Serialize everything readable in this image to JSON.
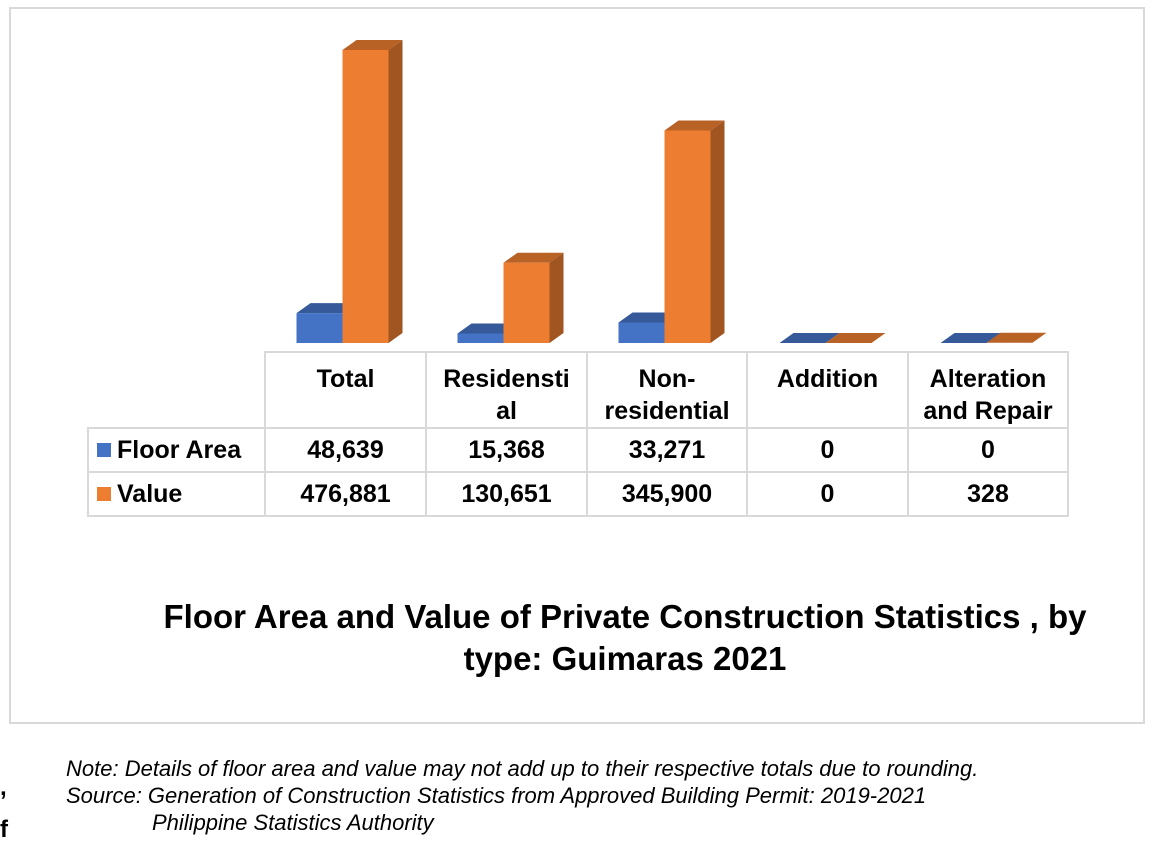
{
  "chart_data": {
    "type": "bar",
    "style": "3d-clustered-column-with-data-table",
    "title": "Floor Area and Value of Private Construction Statistics , by type: Guimaras 2021",
    "categories": [
      "Total",
      "Residenstial",
      "Non-residential",
      "Addition",
      "Alteration and Repair"
    ],
    "category_display": [
      "Total",
      "Residensti\nal",
      "Non-\nresidential",
      "Addition",
      "Alteration\nand Repair"
    ],
    "series": [
      {
        "name": "Floor Area",
        "color": "#4472c4",
        "values": [
          48639,
          15368,
          33271,
          0,
          0
        ],
        "display": [
          "48,639",
          "15,368",
          "33,271",
          "0",
          "0"
        ]
      },
      {
        "name": "Value",
        "color": "#ed7d31",
        "values": [
          476881,
          130651,
          345900,
          0,
          328
        ],
        "display": [
          "476,881",
          "130,651",
          "345,900",
          "0",
          "328"
        ]
      }
    ],
    "legend": "data-table",
    "grid": false
  },
  "footnotes": {
    "note": "Note: Details of floor area and value may not add up to their respective totals due to rounding.",
    "source": "Source: Generation of Construction Statistics from Approved Building Permit: 2019-2021",
    "agency": "Philippine Statistics Authority"
  },
  "edge_text": {
    "comma": ",",
    "letter": "f"
  }
}
